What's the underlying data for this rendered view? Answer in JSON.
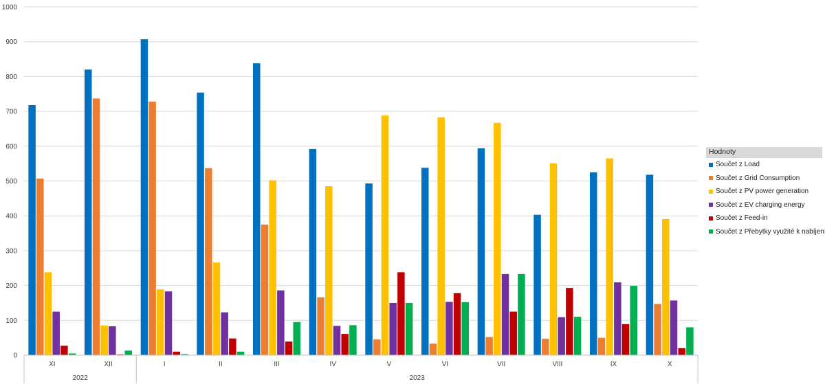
{
  "chart_data": {
    "type": "bar",
    "categories": [
      "XI",
      "XII",
      "I",
      "II",
      "III",
      "IV",
      "V",
      "VI",
      "VII",
      "VIII",
      "IX",
      "X"
    ],
    "groups": [
      {
        "label": "2022",
        "categories": [
          "XI",
          "XII"
        ]
      },
      {
        "label": "2023",
        "categories": [
          "I",
          "II",
          "III",
          "IV",
          "V",
          "VI",
          "VII",
          "VIII",
          "IX",
          "X"
        ]
      }
    ],
    "ylim": [
      0,
      1000
    ],
    "yticks": [
      0,
      100,
      200,
      300,
      400,
      500,
      600,
      700,
      800,
      900,
      1000
    ],
    "grid": true,
    "legend_position": "right",
    "legend_title": "Hodnoty",
    "series": [
      {
        "name": "Součet z Load",
        "color": "#0070c0",
        "values": [
          718,
          820,
          907,
          754,
          838,
          592,
          493,
          538,
          594,
          403,
          525,
          518
        ]
      },
      {
        "name": "Součet z Grid Consumption",
        "color": "#ed7d31",
        "values": [
          507,
          737,
          728,
          537,
          375,
          166,
          45,
          33,
          52,
          47,
          50,
          147
        ]
      },
      {
        "name": "Součet z PV power generation",
        "color": "#ffc000",
        "values": [
          238,
          85,
          189,
          266,
          502,
          485,
          688,
          683,
          667,
          551,
          565,
          391
        ]
      },
      {
        "name": "Součet z EV charging energy",
        "color": "#7030a0",
        "values": [
          125,
          83,
          183,
          123,
          186,
          84,
          150,
          153,
          233,
          109,
          209,
          157
        ]
      },
      {
        "name": "Součet z Feed-in",
        "color": "#c00000",
        "values": [
          27,
          2,
          10,
          48,
          39,
          61,
          238,
          178,
          125,
          193,
          89,
          20
        ]
      },
      {
        "name": "Součet z Přebytky využité k nabíjení",
        "color": "#00b050",
        "values": [
          5,
          13,
          3,
          10,
          95,
          86,
          150,
          152,
          233,
          110,
          199,
          80
        ]
      }
    ]
  }
}
